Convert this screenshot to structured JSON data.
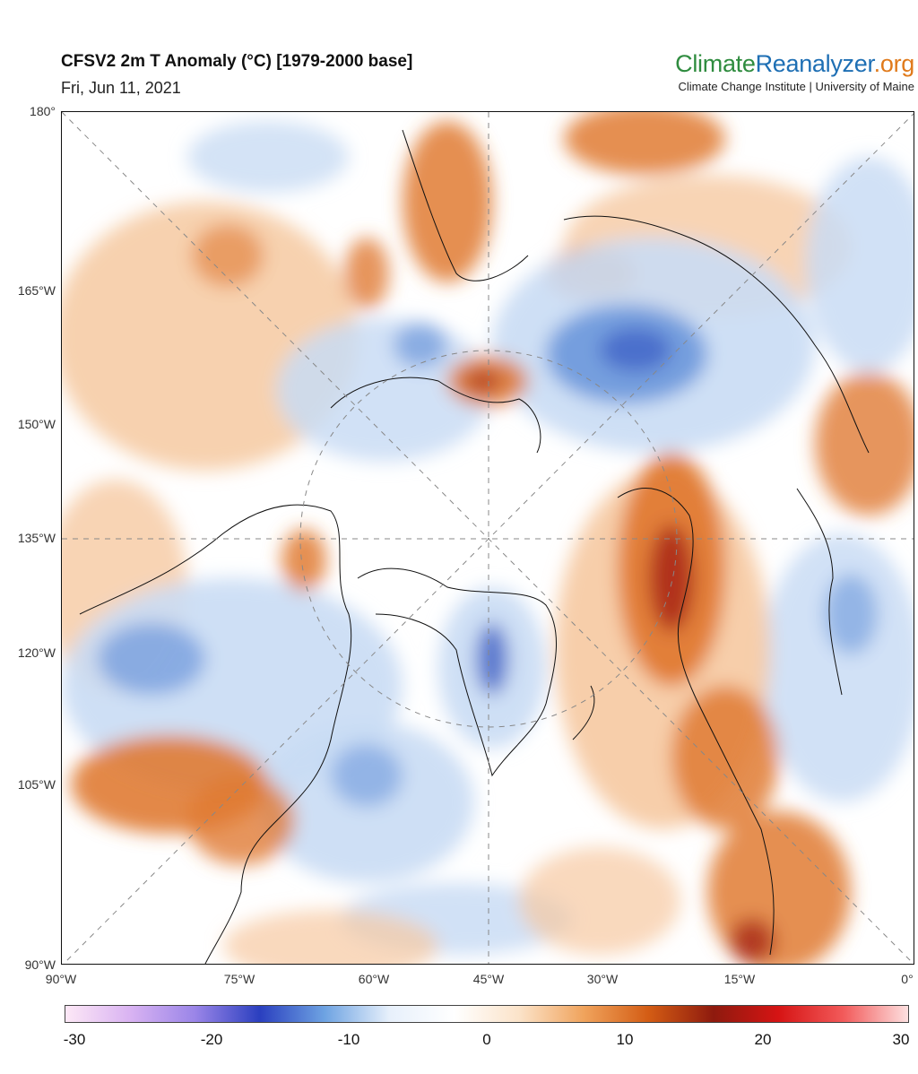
{
  "header": {
    "title": "CFSV2 2m T Anomaly (°C) [1979-2000 base]",
    "date": "Fri, Jun 11, 2021"
  },
  "brand": {
    "name_part1": "Climate",
    "name_part2": "Reanalyzer",
    "name_part3": ".org",
    "subtitle": "Climate Change Institute | University of Maine"
  },
  "map": {
    "lat_labels": [
      "180°",
      "165°W",
      "150°W",
      "135°W",
      "120°W",
      "105°W",
      "90°W"
    ],
    "lon_labels": [
      "90°W",
      "75°W",
      "60°W",
      "45°W",
      "30°W",
      "15°W",
      "0°"
    ],
    "colors": {
      "strong_warm": "#a8261a",
      "warm": "#e07b33",
      "mild_warm": "#f6c9a1",
      "neutral": "#ffffff",
      "mild_cold": "#c9dcf4",
      "cold": "#6c97dc",
      "strong_cold": "#3b5ec4",
      "coastline": "#111111"
    }
  },
  "colorbar": {
    "labels": [
      "-30",
      "-20",
      "-10",
      "0",
      "10",
      "20",
      "30"
    ],
    "stops": [
      "#fde8f6",
      "#d9b3f2",
      "#9a85e8",
      "#2a3fbf",
      "#6ea3e2",
      "#e7f0fb",
      "#ffffff",
      "#fbe3c9",
      "#f0a35c",
      "#d35c14",
      "#8e1a0e",
      "#d61414",
      "#f25a5a",
      "#fde0e0"
    ]
  }
}
